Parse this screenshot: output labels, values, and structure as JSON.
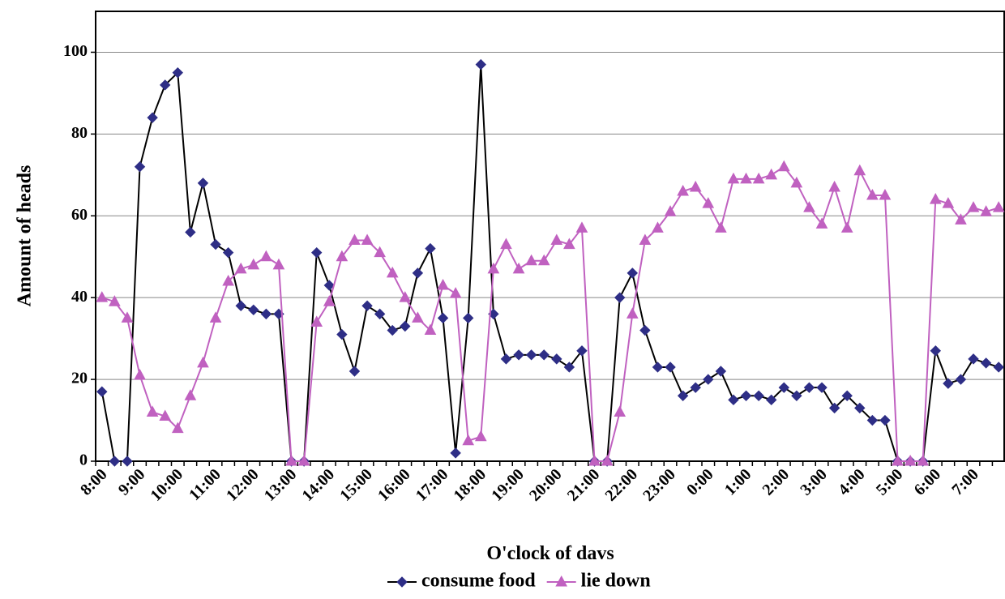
{
  "chart_data": {
    "type": "line",
    "x_label": "O'clock of davs",
    "y_label": "Amount of heads",
    "categories": [
      "8:00",
      null,
      null,
      "9:00",
      null,
      null,
      "10:00",
      null,
      null,
      "11:00",
      null,
      null,
      "12:00",
      null,
      null,
      "13:00",
      null,
      null,
      "14:00",
      null,
      null,
      "15:00",
      null,
      null,
      "16:00",
      null,
      null,
      "17:00",
      null,
      null,
      "18:00",
      null,
      null,
      "19:00",
      null,
      null,
      "20:00",
      null,
      null,
      "21:00",
      null,
      null,
      "22:00",
      null,
      null,
      "23:00",
      null,
      null,
      "0:00",
      null,
      null,
      "1:00",
      null,
      null,
      "2:00",
      null,
      null,
      "3:00",
      null,
      null,
      "4:00",
      null,
      null,
      "5:00",
      null,
      null,
      "6:00",
      null,
      null,
      "7:00",
      null,
      null
    ],
    "series": [
      {
        "name": "consume food",
        "color": "#2e2e86",
        "line_color": "#000000",
        "marker": "diamond",
        "values": [
          17,
          0,
          0,
          72,
          84,
          92,
          95,
          56,
          68,
          53,
          51,
          38,
          37,
          36,
          36,
          0,
          0,
          51,
          43,
          31,
          22,
          38,
          36,
          32,
          33,
          46,
          52,
          35,
          2,
          35,
          97,
          36,
          25,
          26,
          26,
          26,
          25,
          23,
          27,
          0,
          0,
          40,
          46,
          32,
          23,
          23,
          16,
          18,
          20,
          22,
          15,
          16,
          16,
          15,
          18,
          16,
          18,
          18,
          13,
          16,
          13,
          10,
          10,
          0,
          0,
          0,
          27,
          19,
          20,
          25,
          24,
          23
        ]
      },
      {
        "name": "lie down",
        "color": "#c061c0",
        "line_color": "#c061c0",
        "marker": "triangle",
        "values": [
          40,
          39,
          35,
          21,
          12,
          11,
          8,
          16,
          24,
          35,
          44,
          47,
          48,
          50,
          48,
          0,
          0,
          34,
          39,
          50,
          54,
          54,
          51,
          46,
          40,
          35,
          32,
          43,
          41,
          5,
          6,
          47,
          53,
          47,
          49,
          49,
          54,
          53,
          57,
          0,
          0,
          12,
          36,
          54,
          57,
          61,
          66,
          67,
          63,
          57,
          69,
          69,
          69,
          70,
          72,
          68,
          62,
          58,
          67,
          57,
          71,
          65,
          65,
          0,
          0,
          0,
          64,
          63,
          59,
          62,
          61,
          62
        ]
      }
    ],
    "ylim": [
      0,
      110
    ],
    "yticks": [
      0,
      20,
      40,
      60,
      80,
      100
    ],
    "grid": true,
    "legend": "bottom"
  }
}
